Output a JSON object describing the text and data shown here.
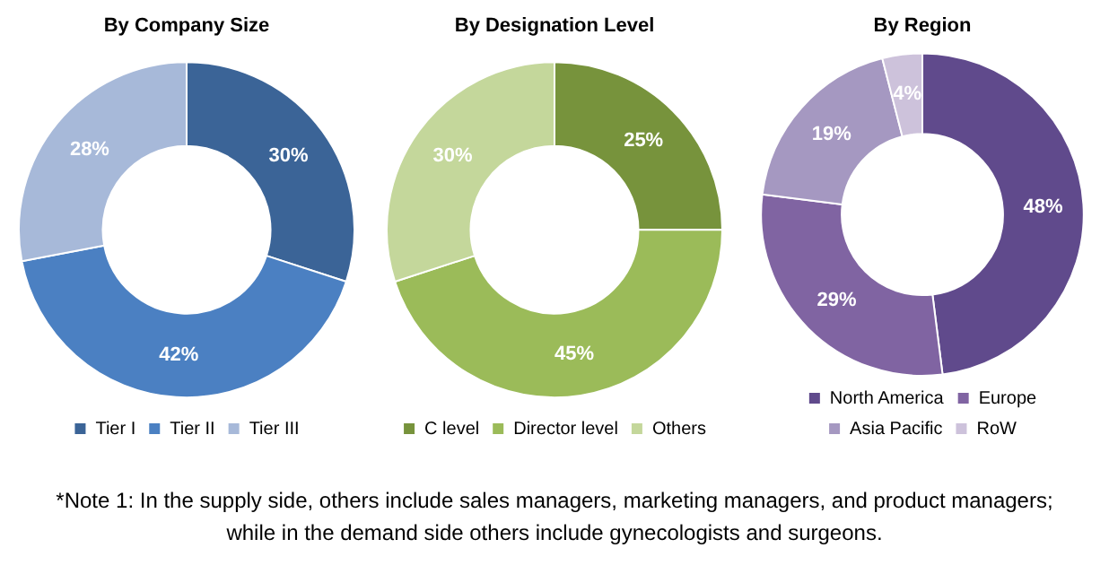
{
  "chart_data": [
    {
      "type": "donut",
      "title": "By Company Size",
      "categories": [
        "Tier I",
        "Tier II",
        "Tier III"
      ],
      "values": [
        30,
        42,
        28
      ],
      "value_labels": [
        "30%",
        "42%",
        "28%"
      ],
      "colors": [
        "#3b6497",
        "#4b80c2",
        "#a7b9d9"
      ],
      "legend": "bottom"
    },
    {
      "type": "donut",
      "title": "By Designation Level",
      "categories": [
        "C level",
        "Director level",
        "Others"
      ],
      "values": [
        25,
        45,
        30
      ],
      "value_labels": [
        "25%",
        "45%",
        "30%"
      ],
      "colors": [
        "#77933c",
        "#9bbb59",
        "#c4d79b"
      ],
      "legend": "bottom"
    },
    {
      "type": "donut",
      "title": "By Region",
      "categories": [
        "North America",
        "Europe",
        "Asia Pacific",
        "RoW"
      ],
      "values": [
        48,
        29,
        19,
        4
      ],
      "value_labels": [
        "48%",
        "29%",
        "19%",
        "4%"
      ],
      "colors": [
        "#604a8c",
        "#8064a2",
        "#a598c1",
        "#cdc2db"
      ],
      "legend": "bottom"
    },
    {
      "type": "other",
      "annotations": [
        "*Note 1: In the supply side, others include sales managers, marketing managers, and product managers; while in the demand side others include gynecologists and surgeons."
      ]
    }
  ]
}
